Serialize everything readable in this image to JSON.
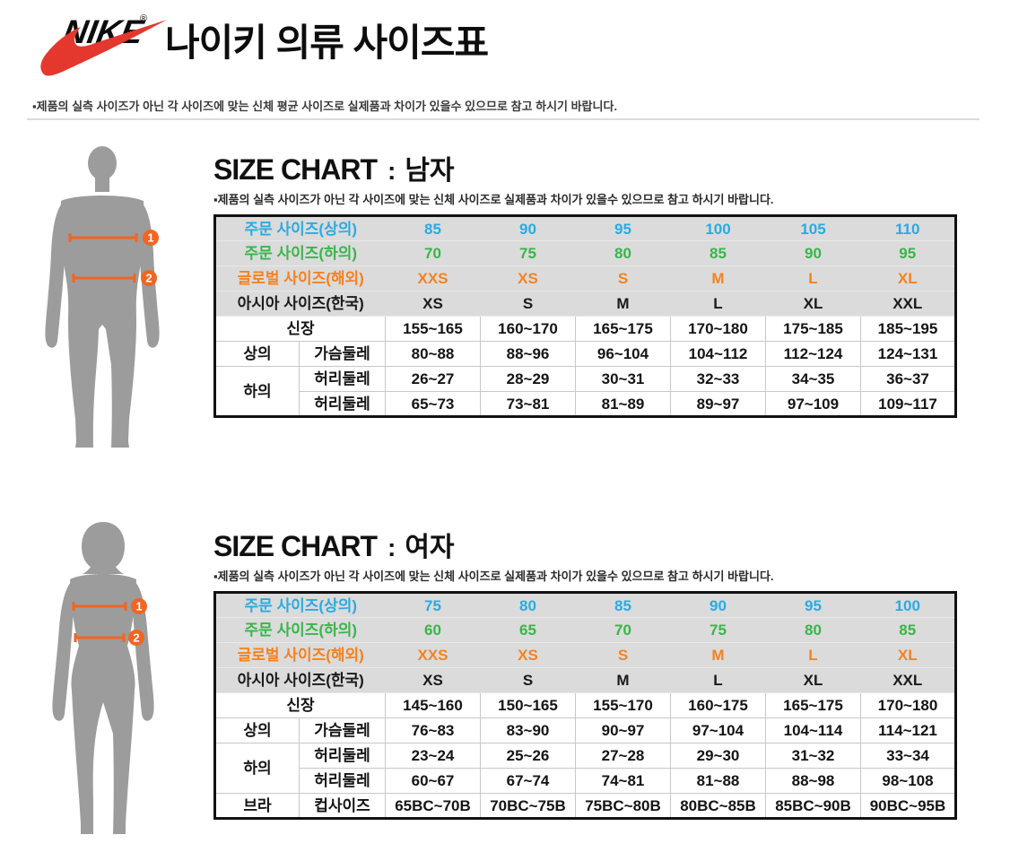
{
  "brand": {
    "name": "NIKE",
    "reg_mark": "®",
    "swoosh_color": "#e4372e"
  },
  "page_title": "나이키 의류 사이즈표",
  "top_note": "▪제품의 실측 사이즈가 아닌 각 사이즈에 맞는 신체 평균 사이즈로 실제품과 차이가 있을수 있으므로 참고 하시기 바랍니다.",
  "colors": {
    "order_top_blue": "#29abe2",
    "order_bottom_green": "#39b54a",
    "global_orange": "#f5821f",
    "asia_black": "#1a1a1a",
    "header_bg": "#dbdbdb",
    "marker_orange": "#f26522",
    "silhouette_gray": "#9c9c9c"
  },
  "sections": [
    {
      "title_en": "SIZE CHART",
      "title_sep": ":",
      "title_ko": "남자",
      "note": "▪제품의 실측 사이즈가 아닌 각 사이즈에 맞는 신체 사이즈로 실제품과 차이가 있을수 있으므로 참고 하시기 바랍니다.",
      "figure": {
        "type": "male-body",
        "markers": [
          {
            "label": "1"
          },
          {
            "label": "2"
          }
        ]
      },
      "header_rows": [
        {
          "label": "주문 사이즈(상의)",
          "color_key": "order_top_blue",
          "values": [
            "85",
            "90",
            "95",
            "100",
            "105",
            "110"
          ]
        },
        {
          "label": "주문 사이즈(하의)",
          "color_key": "order_bottom_green",
          "values": [
            "70",
            "75",
            "80",
            "85",
            "90",
            "95"
          ]
        },
        {
          "label": "글로벌 사이즈(해외)",
          "color_key": "global_orange",
          "values": [
            "XXS",
            "XS",
            "S",
            "M",
            "L",
            "XL"
          ]
        },
        {
          "label": "아시아 사이즈(한국)",
          "color_key": "asia_black",
          "values": [
            "XS",
            "S",
            "M",
            "L",
            "XL",
            "XXL"
          ]
        }
      ],
      "body_rows": [
        {
          "kind": "span",
          "label": "신장",
          "values": [
            "155~165",
            "160~170",
            "165~175",
            "170~180",
            "175~185",
            "185~195"
          ]
        },
        {
          "kind": "pair",
          "group": "상의",
          "rowspan": 1,
          "label": "가슴둘레",
          "values": [
            "80~88",
            "88~96",
            "96~104",
            "104~112",
            "112~124",
            "124~131"
          ]
        },
        {
          "kind": "pair",
          "group": "하의",
          "rowspan": 2,
          "label": "허리둘레",
          "values": [
            "26~27",
            "28~29",
            "30~31",
            "32~33",
            "34~35",
            "36~37"
          ]
        },
        {
          "kind": "cont",
          "label": "허리둘레",
          "values": [
            "65~73",
            "73~81",
            "81~89",
            "89~97",
            "97~109",
            "109~117"
          ]
        }
      ]
    },
    {
      "title_en": "SIZE CHART",
      "title_sep": ":",
      "title_ko": "여자",
      "note": "▪제품의 실측 사이즈가 아닌 각 사이즈에 맞는 신체 사이즈로 실제품과 차이가 있을수 있으므로 참고 하시기 바랍니다.",
      "figure": {
        "type": "female-body",
        "markers": [
          {
            "label": "1"
          },
          {
            "label": "2"
          }
        ]
      },
      "header_rows": [
        {
          "label": "주문 사이즈(상의)",
          "color_key": "order_top_blue",
          "values": [
            "75",
            "80",
            "85",
            "90",
            "95",
            "100"
          ]
        },
        {
          "label": "주문 사이즈(하의)",
          "color_key": "order_bottom_green",
          "values": [
            "60",
            "65",
            "70",
            "75",
            "80",
            "85"
          ]
        },
        {
          "label": "글로벌 사이즈(해외)",
          "color_key": "global_orange",
          "values": [
            "XXS",
            "XS",
            "S",
            "M",
            "L",
            "XL"
          ]
        },
        {
          "label": "아시아 사이즈(한국)",
          "color_key": "asia_black",
          "values": [
            "XS",
            "S",
            "M",
            "L",
            "XL",
            "XXL"
          ]
        }
      ],
      "body_rows": [
        {
          "kind": "span",
          "label": "신장",
          "values": [
            "145~160",
            "150~165",
            "155~170",
            "160~175",
            "165~175",
            "170~180"
          ]
        },
        {
          "kind": "pair",
          "group": "상의",
          "rowspan": 1,
          "label": "가슴둘레",
          "values": [
            "76~83",
            "83~90",
            "90~97",
            "97~104",
            "104~114",
            "114~121"
          ]
        },
        {
          "kind": "pair",
          "group": "하의",
          "rowspan": 2,
          "label": "허리둘레",
          "values": [
            "23~24",
            "25~26",
            "27~28",
            "29~30",
            "31~32",
            "33~34"
          ]
        },
        {
          "kind": "cont",
          "label": "허리둘레",
          "values": [
            "60~67",
            "67~74",
            "74~81",
            "81~88",
            "88~98",
            "98~108"
          ]
        },
        {
          "kind": "pair",
          "group": "브라",
          "rowspan": 1,
          "label": "컵사이즈",
          "values": [
            "65BC~70B",
            "70BC~75B",
            "75BC~80B",
            "80BC~85B",
            "85BC~90B",
            "90BC~95B"
          ]
        }
      ]
    }
  ]
}
